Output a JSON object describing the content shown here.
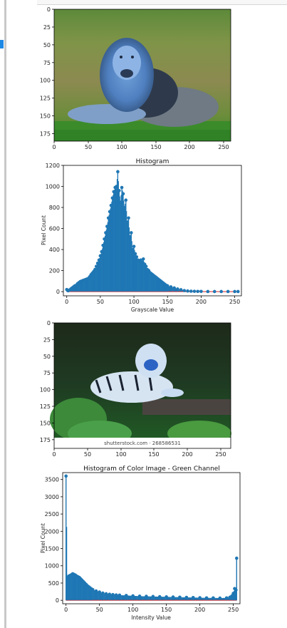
{
  "colors": {
    "stem": "#1f77b4",
    "baseline": "#d62728"
  },
  "image1": {
    "yticks": [
      "0",
      "25",
      "50",
      "75",
      "100",
      "125",
      "150",
      "175"
    ],
    "xticks": [
      "0",
      "50",
      "100",
      "150",
      "200",
      "250"
    ]
  },
  "chart1": {
    "title": "Histogram",
    "xlabel": "Grayscale Value",
    "ylabel": "Pixel Count",
    "yticks": [
      "0",
      "200",
      "400",
      "600",
      "800",
      "1000",
      "1200"
    ],
    "xticks": [
      "0",
      "50",
      "100",
      "150",
      "200",
      "250"
    ]
  },
  "image2": {
    "yticks": [
      "0",
      "25",
      "50",
      "75",
      "100",
      "125",
      "150",
      "175"
    ],
    "xticks": [
      "0",
      "50",
      "100",
      "150",
      "200",
      "250"
    ],
    "watermark": "shutterstock.com · 268586531"
  },
  "chart2": {
    "title": "Histogram of Color Image - Green Channel",
    "xlabel": "Intensity Value",
    "ylabel": "Pixel Count",
    "yticks": [
      "0",
      "500",
      "1000",
      "1500",
      "2000",
      "2500",
      "3000",
      "3500"
    ],
    "xticks": [
      "0",
      "50",
      "100",
      "150",
      "200",
      "250"
    ]
  },
  "chart_data": [
    {
      "type": "scatter",
      "title": "Histogram",
      "xlabel": "Grayscale Value",
      "ylabel": "Pixel Count",
      "xlim": [
        -5,
        260
      ],
      "ylim": [
        -40,
        1200
      ],
      "x": [
        0,
        2,
        4,
        6,
        8,
        10,
        12,
        14,
        16,
        18,
        20,
        22,
        24,
        26,
        28,
        30,
        32,
        34,
        36,
        38,
        40,
        42,
        44,
        46,
        48,
        50,
        52,
        54,
        56,
        58,
        60,
        62,
        64,
        66,
        68,
        70,
        72,
        74,
        76,
        78,
        80,
        82,
        84,
        86,
        88,
        90,
        92,
        94,
        96,
        98,
        100,
        102,
        104,
        106,
        108,
        110,
        112,
        114,
        116,
        118,
        120,
        122,
        124,
        126,
        128,
        130,
        132,
        134,
        136,
        138,
        140,
        142,
        144,
        146,
        148,
        150,
        155,
        160,
        165,
        170,
        175,
        180,
        185,
        190,
        195,
        200,
        210,
        220,
        230,
        240,
        250,
        255
      ],
      "values": [
        20,
        8,
        15,
        25,
        35,
        45,
        55,
        60,
        75,
        85,
        95,
        100,
        105,
        110,
        115,
        120,
        125,
        140,
        160,
        175,
        190,
        210,
        240,
        270,
        300,
        340,
        380,
        440,
        500,
        560,
        620,
        700,
        760,
        820,
        890,
        950,
        990,
        1000,
        1140,
        960,
        850,
        990,
        930,
        800,
        870,
        660,
        700,
        520,
        560,
        400,
        430,
        360,
        330,
        300,
        290,
        300,
        280,
        310,
        260,
        240,
        210,
        200,
        180,
        170,
        160,
        150,
        140,
        130,
        120,
        110,
        100,
        90,
        80,
        70,
        60,
        55,
        45,
        35,
        25,
        18,
        10,
        6,
        4,
        3,
        2,
        2,
        1,
        1,
        1,
        1,
        1,
        1
      ]
    },
    {
      "type": "scatter",
      "title": "Histogram of Color Image - Green Channel",
      "xlabel": "Intensity Value",
      "ylabel": "Pixel Count",
      "xlim": [
        -5,
        260
      ],
      "ylim": [
        -100,
        3700
      ],
      "x": [
        0,
        2,
        4,
        6,
        8,
        10,
        12,
        14,
        16,
        18,
        20,
        22,
        24,
        26,
        28,
        30,
        32,
        34,
        36,
        38,
        40,
        45,
        50,
        55,
        60,
        65,
        70,
        75,
        80,
        90,
        100,
        110,
        120,
        130,
        140,
        150,
        160,
        170,
        180,
        190,
        200,
        210,
        220,
        230,
        240,
        245,
        248,
        250,
        252,
        254,
        255
      ],
      "values": [
        3600,
        650,
        700,
        720,
        740,
        770,
        750,
        730,
        700,
        680,
        660,
        620,
        580,
        540,
        500,
        460,
        420,
        390,
        360,
        330,
        310,
        270,
        240,
        210,
        190,
        175,
        165,
        155,
        150,
        140,
        130,
        120,
        115,
        110,
        105,
        100,
        95,
        90,
        85,
        80,
        75,
        70,
        70,
        65,
        70,
        90,
        130,
        200,
        340,
        300,
        1220
      ]
    }
  ]
}
